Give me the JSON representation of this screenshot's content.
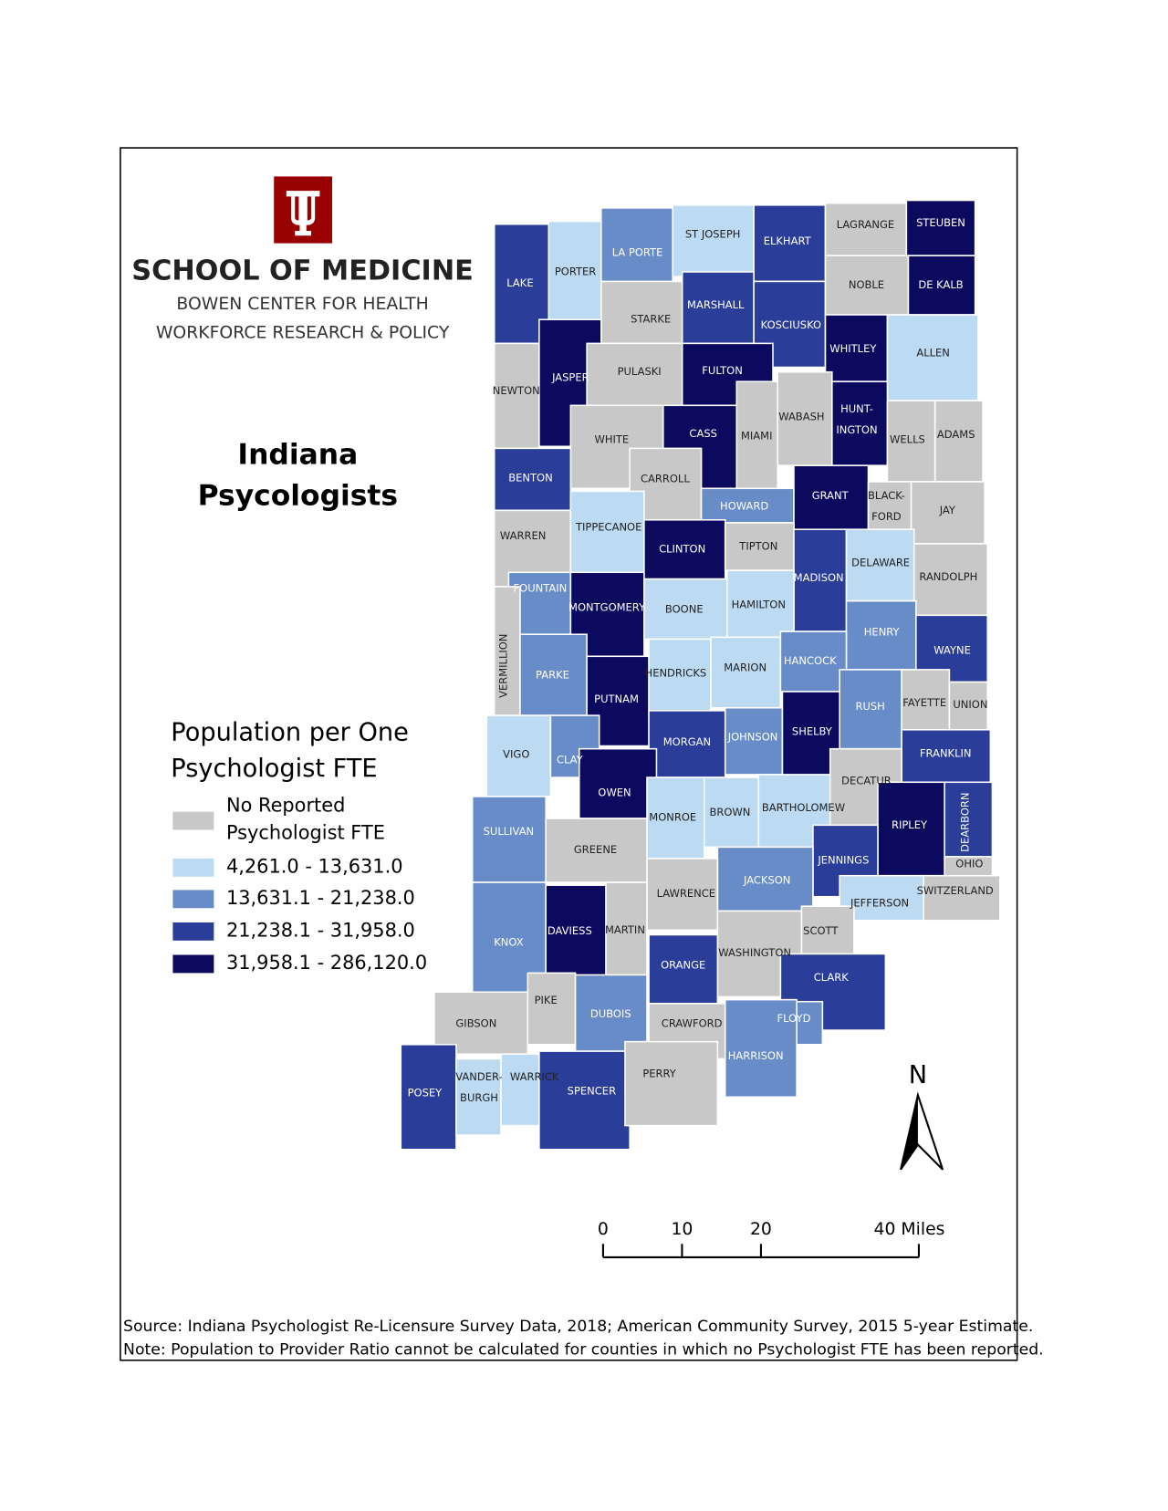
{
  "header": {
    "logo_lines": [
      "SCHOOL OF MEDICINE",
      "BOWEN CENTER FOR HEALTH",
      "WORKFORCE RESEARCH & POLICY"
    ],
    "title": [
      "Indiana",
      "Psycologists"
    ]
  },
  "legend": {
    "title": [
      "Population per One",
      "Psychologist FTE"
    ],
    "items": [
      {
        "label": [
          "No Reported",
          "Psychologist FTE"
        ],
        "color": "#c8c8c8"
      },
      {
        "label": [
          "4,261.0 - 13,631.0"
        ],
        "color": "#bcdaf1"
      },
      {
        "label": [
          "13,631.1 - 21,238.0"
        ],
        "color": "#678cc8"
      },
      {
        "label": [
          "21,238.1 - 31,958.0"
        ],
        "color": "#2a3d98"
      },
      {
        "label": [
          "31,958.1 - 286,120.0"
        ],
        "color": "#0b0a5e"
      }
    ]
  },
  "counties": [
    {
      "name": [
        "LAKE"
      ],
      "class": 3
    },
    {
      "name": [
        "PORTER"
      ],
      "class": 1
    },
    {
      "name": [
        "LA PORTE"
      ],
      "class": 2
    },
    {
      "name": [
        "ST JOSEPH"
      ],
      "class": 1
    },
    {
      "name": [
        "ELKHART"
      ],
      "class": 3
    },
    {
      "name": [
        "LAGRANGE"
      ],
      "class": 0
    },
    {
      "name": [
        "STEUBEN"
      ],
      "class": 4
    },
    {
      "name": [
        "STARKE"
      ],
      "class": 0
    },
    {
      "name": [
        "MARSHALL"
      ],
      "class": 3
    },
    {
      "name": [
        "KOSCIUSKO"
      ],
      "class": 3
    },
    {
      "name": [
        "NOBLE"
      ],
      "class": 0
    },
    {
      "name": [
        "DE KALB"
      ],
      "class": 4
    },
    {
      "name": [
        "NEWTON"
      ],
      "class": 0
    },
    {
      "name": [
        "JASPER"
      ],
      "class": 4
    },
    {
      "name": [
        "PULASKI"
      ],
      "class": 0
    },
    {
      "name": [
        "FULTON"
      ],
      "class": 4
    },
    {
      "name": [
        "WHITLEY"
      ],
      "class": 4
    },
    {
      "name": [
        "ALLEN"
      ],
      "class": 1
    },
    {
      "name": [
        "WHITE"
      ],
      "class": 0
    },
    {
      "name": [
        "CASS"
      ],
      "class": 4
    },
    {
      "name": [
        "MIAMI"
      ],
      "class": 0
    },
    {
      "name": [
        "WABASH"
      ],
      "class": 0
    },
    {
      "name": [
        "HUNT-",
        "INGTON"
      ],
      "class": 4
    },
    {
      "name": [
        "WELLS"
      ],
      "class": 0
    },
    {
      "name": [
        "ADAMS"
      ],
      "class": 0
    },
    {
      "name": [
        "BENTON"
      ],
      "class": 3
    },
    {
      "name": [
        "CARROLL"
      ],
      "class": 0
    },
    {
      "name": [
        "HOWARD"
      ],
      "class": 2
    },
    {
      "name": [
        "GRANT"
      ],
      "class": 4
    },
    {
      "name": [
        "BLACK-",
        "FORD"
      ],
      "class": 0
    },
    {
      "name": [
        "JAY"
      ],
      "class": 0
    },
    {
      "name": [
        "WARREN"
      ],
      "class": 0
    },
    {
      "name": [
        "TIPPECANOE"
      ],
      "class": 1
    },
    {
      "name": [
        "CLINTON"
      ],
      "class": 4
    },
    {
      "name": [
        "TIPTON"
      ],
      "class": 0
    },
    {
      "name": [
        "MADISON"
      ],
      "class": 3
    },
    {
      "name": [
        "DELAWARE"
      ],
      "class": 1
    },
    {
      "name": [
        "RANDOLPH"
      ],
      "class": 0
    },
    {
      "name": [
        "FOUNTAIN"
      ],
      "class": 2
    },
    {
      "name": [
        "MONTGOMERY"
      ],
      "class": 4
    },
    {
      "name": [
        "BOONE"
      ],
      "class": 1
    },
    {
      "name": [
        "HAMILTON"
      ],
      "class": 1
    },
    {
      "name": [
        "VERMILLION"
      ],
      "class": 0
    },
    {
      "name": [
        "HENRY"
      ],
      "class": 2
    },
    {
      "name": [
        "WAYNE"
      ],
      "class": 3
    },
    {
      "name": [
        "PARKE"
      ],
      "class": 2
    },
    {
      "name": [
        "PUTNAM"
      ],
      "class": 4
    },
    {
      "name": [
        "HENDRICKS"
      ],
      "class": 1
    },
    {
      "name": [
        "MARION"
      ],
      "class": 1
    },
    {
      "name": [
        "HANCOCK"
      ],
      "class": 2
    },
    {
      "name": [
        "RUSH"
      ],
      "class": 2
    },
    {
      "name": [
        "FAYETTE"
      ],
      "class": 0
    },
    {
      "name": [
        "UNION"
      ],
      "class": 0
    },
    {
      "name": [
        "VIGO"
      ],
      "class": 1
    },
    {
      "name": [
        "CLAY"
      ],
      "class": 2
    },
    {
      "name": [
        "MORGAN"
      ],
      "class": 3
    },
    {
      "name": [
        "JOHNSON"
      ],
      "class": 2
    },
    {
      "name": [
        "SHELBY"
      ],
      "class": 4
    },
    {
      "name": [
        "FRANKLIN"
      ],
      "class": 3
    },
    {
      "name": [
        "OWEN"
      ],
      "class": 4
    },
    {
      "name": [
        "MONROE"
      ],
      "class": 1
    },
    {
      "name": [
        "BROWN"
      ],
      "class": 1
    },
    {
      "name": [
        "BARTHOLOMEW"
      ],
      "class": 1
    },
    {
      "name": [
        "DECATUR"
      ],
      "class": 0
    },
    {
      "name": [
        "SULLIVAN"
      ],
      "class": 2
    },
    {
      "name": [
        "GREENE"
      ],
      "class": 0
    },
    {
      "name": [
        "RIPLEY"
      ],
      "class": 4
    },
    {
      "name": [
        "DEARBORN"
      ],
      "class": 3
    },
    {
      "name": [
        "JENNINGS"
      ],
      "class": 3
    },
    {
      "name": [
        "JACKSON"
      ],
      "class": 2
    },
    {
      "name": [
        "LAWRENCE"
      ],
      "class": 0
    },
    {
      "name": [
        "OHIO"
      ],
      "class": 0
    },
    {
      "name": [
        "SWITZERLAND"
      ],
      "class": 0
    },
    {
      "name": [
        "JEFFERSON"
      ],
      "class": 1
    },
    {
      "name": [
        "KNOX"
      ],
      "class": 2
    },
    {
      "name": [
        "DAVIESS"
      ],
      "class": 4
    },
    {
      "name": [
        "MARTIN"
      ],
      "class": 0
    },
    {
      "name": [
        "SCOTT"
      ],
      "class": 0
    },
    {
      "name": [
        "WASHINGTON"
      ],
      "class": 0
    },
    {
      "name": [
        "ORANGE"
      ],
      "class": 3
    },
    {
      "name": [
        "CLARK"
      ],
      "class": 3
    },
    {
      "name": [
        "GIBSON"
      ],
      "class": 0
    },
    {
      "name": [
        "PIKE"
      ],
      "class": 0
    },
    {
      "name": [
        "DUBOIS"
      ],
      "class": 2
    },
    {
      "name": [
        "CRAWFORD"
      ],
      "class": 0
    },
    {
      "name": [
        "FLOYD"
      ],
      "class": 2
    },
    {
      "name": [
        "HARRISON"
      ],
      "class": 2
    },
    {
      "name": [
        "POSEY"
      ],
      "class": 3
    },
    {
      "name": [
        "VANDER-",
        "BURGH"
      ],
      "class": 1
    },
    {
      "name": [
        "WARRICK"
      ],
      "class": 1
    },
    {
      "name": [
        "SPENCER"
      ],
      "class": 3
    },
    {
      "name": [
        "PERRY"
      ],
      "class": 0
    }
  ],
  "north": "N",
  "scale_bar": {
    "ticks": [
      0,
      10,
      20,
      {
        "value": 40,
        "label": "40 Miles"
      }
    ]
  },
  "footer": {
    "source": "Source: Indiana Psychologist Re-Licensure Survey Data, 2018; American Community Survey, 2015 5-year Estimate.",
    "note": "Note: Population to Provider Ratio cannot be calculated for counties in which no Psychologist FTE has been reported."
  }
}
